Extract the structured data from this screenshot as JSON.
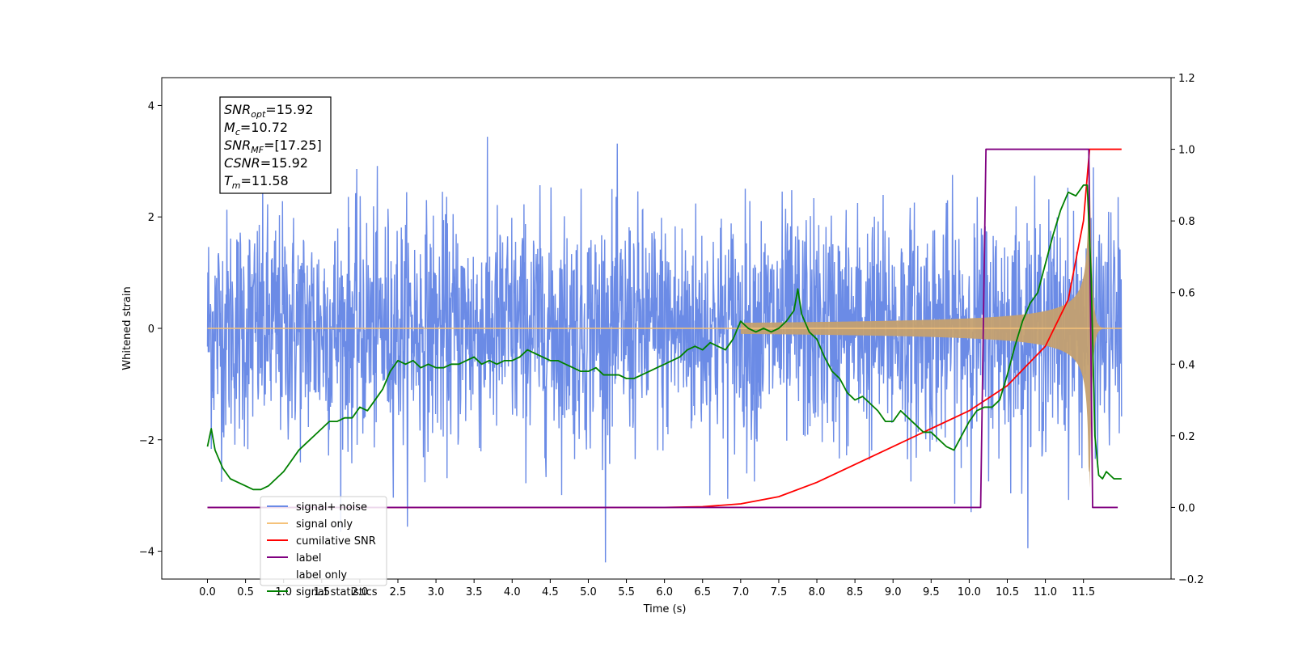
{
  "chart_data": {
    "type": "line",
    "xlabel": "Time (s)",
    "ylabel": "Whitened strain",
    "xlim": [
      -0.6,
      12.65
    ],
    "ylim": [
      -4.5,
      4.5
    ],
    "ylim_right": [
      -0.2,
      1.2
    ],
    "x_ticks": [
      "0.0",
      "0.5",
      "1.0",
      "1.5",
      "2.0",
      "2.5",
      "3.0",
      "3.5",
      "4.0",
      "4.5",
      "5.0",
      "5.5",
      "6.0",
      "6.5",
      "7.0",
      "7.5",
      "8.0",
      "8.5",
      "9.0",
      "9.5",
      "10.0",
      "10.5",
      "11.0",
      "11.5"
    ],
    "y_ticks_left": [
      "−4",
      "−2",
      "0",
      "2",
      "4"
    ],
    "y_ticks_right": [
      "−0.2",
      "0.0",
      "0.2",
      "0.4",
      "0.6",
      "0.8",
      "1.0",
      "1.2"
    ],
    "grid": false,
    "legend_position": "lower-left",
    "annotation": {
      "lines": [
        {
          "base": "SNR",
          "sub": "opt",
          "value": "=15.92"
        },
        {
          "base": "M",
          "sub": "c",
          "value": "=10.72"
        },
        {
          "base": "SNR",
          "sub": "MF",
          "value": "=[17.25]"
        },
        {
          "base": "CSNR",
          "sub": "",
          "value": "=15.92"
        },
        {
          "base": "T",
          "sub": "m",
          "value": "=11.58"
        }
      ]
    },
    "series": [
      {
        "name": "signal+ noise",
        "color": "#6b8be6",
        "axis": "left",
        "kind": "noise",
        "x_range": [
          0.0,
          12.0
        ],
        "sigma": 1.0
      },
      {
        "name": "signal only",
        "color": "#f5c27a",
        "axis": "left",
        "kind": "chirp",
        "t_merge": 11.58,
        "t_end": 12.0,
        "peak": 3.2
      },
      {
        "name": "cumilative SNR",
        "color": "#ff0000",
        "axis": "right",
        "x": [
          0.0,
          6.0,
          6.5,
          7.0,
          7.5,
          8.0,
          8.5,
          9.0,
          9.5,
          10.0,
          10.5,
          11.0,
          11.3,
          11.5,
          11.58,
          12.0
        ],
        "y": [
          0.0,
          0.0,
          0.002,
          0.01,
          0.03,
          0.07,
          0.12,
          0.17,
          0.22,
          0.27,
          0.34,
          0.45,
          0.58,
          0.8,
          1.0,
          1.0
        ]
      },
      {
        "name": "label",
        "color": "#800080",
        "axis": "right",
        "x": [
          0.0,
          10.15,
          10.22,
          11.57,
          11.62,
          11.95
        ],
        "y": [
          0.0,
          0.0,
          1.0,
          1.0,
          0.0,
          0.0
        ]
      },
      {
        "name": "label only",
        "color": "#ffffff",
        "axis": "right",
        "x": [],
        "y": []
      },
      {
        "name": "signal statistics",
        "color": "#008000",
        "axis": "right",
        "x": [
          0.0,
          0.05,
          0.1,
          0.2,
          0.3,
          0.4,
          0.5,
          0.6,
          0.7,
          0.8,
          0.9,
          1.0,
          1.1,
          1.2,
          1.3,
          1.4,
          1.5,
          1.6,
          1.7,
          1.8,
          1.9,
          2.0,
          2.1,
          2.2,
          2.3,
          2.4,
          2.5,
          2.6,
          2.7,
          2.8,
          2.9,
          3.0,
          3.1,
          3.2,
          3.3,
          3.4,
          3.5,
          3.6,
          3.7,
          3.8,
          3.9,
          4.0,
          4.1,
          4.2,
          4.3,
          4.4,
          4.5,
          4.6,
          4.7,
          4.8,
          4.9,
          5.0,
          5.1,
          5.2,
          5.3,
          5.4,
          5.5,
          5.6,
          5.7,
          5.8,
          5.9,
          6.0,
          6.1,
          6.2,
          6.3,
          6.4,
          6.5,
          6.6,
          6.7,
          6.8,
          6.9,
          7.0,
          7.1,
          7.2,
          7.3,
          7.4,
          7.5,
          7.6,
          7.7,
          7.75,
          7.8,
          7.9,
          8.0,
          8.1,
          8.2,
          8.3,
          8.4,
          8.5,
          8.6,
          8.7,
          8.8,
          8.9,
          9.0,
          9.1,
          9.2,
          9.3,
          9.4,
          9.5,
          9.6,
          9.7,
          9.8,
          9.9,
          10.0,
          10.1,
          10.2,
          10.3,
          10.4,
          10.5,
          10.6,
          10.7,
          10.8,
          10.9,
          11.0,
          11.1,
          11.2,
          11.3,
          11.4,
          11.5,
          11.55,
          11.6,
          11.65,
          11.7,
          11.75,
          11.8,
          11.9,
          12.0
        ],
        "y": [
          0.17,
          0.22,
          0.16,
          0.11,
          0.08,
          0.07,
          0.06,
          0.05,
          0.05,
          0.06,
          0.08,
          0.1,
          0.13,
          0.16,
          0.18,
          0.2,
          0.22,
          0.24,
          0.24,
          0.25,
          0.25,
          0.28,
          0.27,
          0.3,
          0.33,
          0.38,
          0.41,
          0.4,
          0.41,
          0.39,
          0.4,
          0.39,
          0.39,
          0.4,
          0.4,
          0.41,
          0.42,
          0.4,
          0.41,
          0.4,
          0.41,
          0.41,
          0.42,
          0.44,
          0.43,
          0.42,
          0.41,
          0.41,
          0.4,
          0.39,
          0.38,
          0.38,
          0.39,
          0.37,
          0.37,
          0.37,
          0.36,
          0.36,
          0.37,
          0.38,
          0.39,
          0.4,
          0.41,
          0.42,
          0.44,
          0.45,
          0.44,
          0.46,
          0.45,
          0.44,
          0.47,
          0.52,
          0.5,
          0.49,
          0.5,
          0.49,
          0.5,
          0.52,
          0.55,
          0.61,
          0.54,
          0.49,
          0.47,
          0.42,
          0.38,
          0.36,
          0.32,
          0.3,
          0.31,
          0.29,
          0.27,
          0.24,
          0.24,
          0.27,
          0.25,
          0.23,
          0.21,
          0.21,
          0.19,
          0.17,
          0.16,
          0.2,
          0.24,
          0.27,
          0.28,
          0.28,
          0.3,
          0.37,
          0.45,
          0.52,
          0.57,
          0.6,
          0.68,
          0.76,
          0.83,
          0.88,
          0.87,
          0.9,
          0.9,
          0.65,
          0.2,
          0.09,
          0.08,
          0.1,
          0.08,
          0.08
        ]
      }
    ]
  }
}
